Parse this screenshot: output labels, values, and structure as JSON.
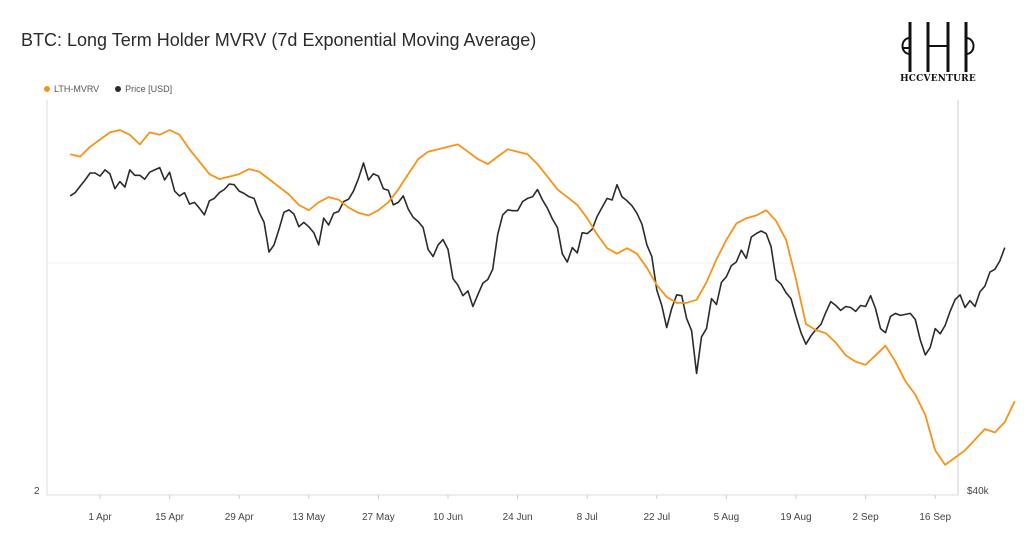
{
  "title": "BTC: Long Term Holder MVRV (7d Exponential Moving Average)",
  "logo": {
    "text": "HCCVENTURE",
    "icon": "hcc-monogram-icon"
  },
  "chart_data": {
    "type": "line",
    "title": "BTC: Long Term Holder MVRV (7d Exponential Moving Average)",
    "legend_position": "top-left",
    "grid": false,
    "x_ticks": [
      "1 Apr",
      "15 Apr",
      "29 Apr",
      "13 May",
      "27 May",
      "10 Jun",
      "24 Jun",
      "8 Jul",
      "22 Jul",
      "5 Aug",
      "19 Aug",
      "2 Sep",
      "16 Sep"
    ],
    "left_axis_label": "2",
    "right_axis_label": "$40k",
    "x_start_day": -6,
    "x_end_day": 173,
    "series": [
      {
        "name": "LTH-MVRV",
        "color": "#f7931a",
        "axis": "left",
        "points": [
          [
            -6,
            3.12
          ],
          [
            -4,
            3.11
          ],
          [
            -2,
            3.15
          ],
          [
            0,
            3.18
          ],
          [
            2,
            3.21
          ],
          [
            4,
            3.22
          ],
          [
            6,
            3.2
          ],
          [
            8,
            3.16
          ],
          [
            10,
            3.21
          ],
          [
            12,
            3.2
          ],
          [
            14,
            3.22
          ],
          [
            16,
            3.2
          ],
          [
            18,
            3.14
          ],
          [
            20,
            3.09
          ],
          [
            22,
            3.04
          ],
          [
            24,
            3.02
          ],
          [
            26,
            3.03
          ],
          [
            28,
            3.04
          ],
          [
            30,
            3.06
          ],
          [
            32,
            3.05
          ],
          [
            34,
            3.02
          ],
          [
            36,
            2.99
          ],
          [
            38,
            2.96
          ],
          [
            40,
            2.92
          ],
          [
            42,
            2.9
          ],
          [
            44,
            2.93
          ],
          [
            46,
            2.95
          ],
          [
            48,
            2.94
          ],
          [
            50,
            2.91
          ],
          [
            52,
            2.89
          ],
          [
            54,
            2.88
          ],
          [
            56,
            2.9
          ],
          [
            58,
            2.93
          ],
          [
            60,
            2.98
          ],
          [
            62,
            3.04
          ],
          [
            64,
            3.1
          ],
          [
            66,
            3.13
          ],
          [
            68,
            3.14
          ],
          [
            70,
            3.15
          ],
          [
            72,
            3.16
          ],
          [
            74,
            3.13
          ],
          [
            76,
            3.1
          ],
          [
            78,
            3.08
          ],
          [
            80,
            3.11
          ],
          [
            82,
            3.14
          ],
          [
            84,
            3.13
          ],
          [
            86,
            3.12
          ],
          [
            88,
            3.08
          ],
          [
            90,
            3.03
          ],
          [
            92,
            2.98
          ],
          [
            94,
            2.95
          ],
          [
            96,
            2.92
          ],
          [
            98,
            2.87
          ],
          [
            100,
            2.81
          ],
          [
            102,
            2.76
          ],
          [
            104,
            2.74
          ],
          [
            106,
            2.76
          ],
          [
            108,
            2.74
          ],
          [
            110,
            2.69
          ],
          [
            112,
            2.63
          ],
          [
            114,
            2.59
          ],
          [
            116,
            2.57
          ],
          [
            118,
            2.57
          ],
          [
            120,
            2.58
          ],
          [
            122,
            2.64
          ],
          [
            124,
            2.72
          ],
          [
            126,
            2.79
          ],
          [
            128,
            2.85
          ],
          [
            130,
            2.87
          ],
          [
            132,
            2.88
          ],
          [
            134,
            2.9
          ],
          [
            136,
            2.86
          ],
          [
            138,
            2.79
          ],
          [
            140,
            2.65
          ],
          [
            142,
            2.5
          ],
          [
            144,
            2.48
          ],
          [
            146,
            2.47
          ],
          [
            148,
            2.44
          ],
          [
            150,
            2.4
          ],
          [
            152,
            2.38
          ],
          [
            154,
            2.37
          ],
          [
            156,
            2.4
          ],
          [
            158,
            2.43
          ],
          [
            160,
            2.38
          ],
          [
            162,
            2.32
          ],
          [
            164,
            2.28
          ],
          [
            166,
            2.22
          ],
          [
            168,
            2.12
          ],
          [
            170,
            2.08
          ],
          [
            172,
            2.1
          ],
          [
            174,
            2.12
          ],
          [
            176,
            2.15
          ],
          [
            178,
            2.18
          ],
          [
            180,
            2.17
          ],
          [
            182,
            2.2
          ],
          [
            184,
            2.26
          ]
        ]
      },
      {
        "name": "Price [USD]",
        "color": "#2b2b2b",
        "axis": "right",
        "points": [
          [
            -6,
            68.6
          ],
          [
            -5,
            69.0
          ],
          [
            -4,
            69.8
          ],
          [
            -3,
            70.6
          ],
          [
            -2,
            71.5
          ],
          [
            -1,
            71.5
          ],
          [
            0,
            71.1
          ],
          [
            1,
            71.9
          ],
          [
            2,
            71.4
          ],
          [
            3,
            69.5
          ],
          [
            4,
            70.4
          ],
          [
            5,
            69.7
          ],
          [
            6,
            71.9
          ],
          [
            7,
            71.2
          ],
          [
            8,
            71.2
          ],
          [
            9,
            70.7
          ],
          [
            10,
            71.6
          ],
          [
            11,
            71.9
          ],
          [
            12,
            72.2
          ],
          [
            13,
            70.6
          ],
          [
            14,
            71.6
          ],
          [
            15,
            69.2
          ],
          [
            16,
            68.6
          ],
          [
            17,
            69.0
          ],
          [
            18,
            67.6
          ],
          [
            19,
            67.8
          ],
          [
            20,
            67.1
          ],
          [
            21,
            66.3
          ],
          [
            22,
            68.0
          ],
          [
            23,
            68.3
          ],
          [
            24,
            69.0
          ],
          [
            25,
            69.4
          ],
          [
            26,
            70.1
          ],
          [
            27,
            70.0
          ],
          [
            28,
            69.2
          ],
          [
            29,
            68.9
          ],
          [
            30,
            68.5
          ],
          [
            31,
            68.3
          ],
          [
            32,
            66.6
          ],
          [
            33,
            65.4
          ],
          [
            34,
            62.0
          ],
          [
            35,
            62.8
          ],
          [
            36,
            64.6
          ],
          [
            37,
            66.6
          ],
          [
            38,
            66.9
          ],
          [
            39,
            66.4
          ],
          [
            40,
            64.9
          ],
          [
            41,
            65.4
          ],
          [
            42,
            64.9
          ],
          [
            43,
            64.2
          ],
          [
            44,
            62.8
          ],
          [
            45,
            65.9
          ],
          [
            46,
            65.1
          ],
          [
            47,
            66.5
          ],
          [
            48,
            66.7
          ],
          [
            49,
            67.9
          ],
          [
            50,
            68.2
          ],
          [
            51,
            69.2
          ],
          [
            52,
            70.8
          ],
          [
            53,
            72.8
          ],
          [
            54,
            70.6
          ],
          [
            55,
            71.4
          ],
          [
            56,
            71.1
          ],
          [
            57,
            69.5
          ],
          [
            58,
            69.3
          ],
          [
            59,
            67.5
          ],
          [
            60,
            67.8
          ],
          [
            61,
            68.6
          ],
          [
            62,
            67.0
          ],
          [
            63,
            66.0
          ],
          [
            64,
            65.5
          ],
          [
            65,
            64.8
          ],
          [
            66,
            62.3
          ],
          [
            67,
            61.5
          ],
          [
            68,
            62.8
          ],
          [
            69,
            63.4
          ],
          [
            70,
            62.3
          ],
          [
            71,
            59.1
          ],
          [
            72,
            58.4
          ],
          [
            73,
            57.3
          ],
          [
            74,
            57.8
          ],
          [
            75,
            56.2
          ],
          [
            76,
            57.4
          ],
          [
            77,
            58.6
          ],
          [
            78,
            59.0
          ],
          [
            79,
            60.1
          ],
          [
            80,
            64.0
          ],
          [
            81,
            66.3
          ],
          [
            82,
            66.9
          ],
          [
            83,
            66.8
          ],
          [
            84,
            66.8
          ],
          [
            85,
            67.9
          ],
          [
            86,
            68.3
          ],
          [
            87,
            68.5
          ],
          [
            88,
            69.4
          ],
          [
            89,
            68.1
          ],
          [
            90,
            67.1
          ],
          [
            91,
            65.8
          ],
          [
            92,
            64.8
          ],
          [
            93,
            61.8
          ],
          [
            94,
            60.9
          ],
          [
            95,
            62.5
          ],
          [
            96,
            61.9
          ],
          [
            97,
            64.2
          ],
          [
            98,
            64.1
          ],
          [
            99,
            64.6
          ],
          [
            100,
            66.1
          ],
          [
            101,
            67.2
          ],
          [
            102,
            68.3
          ],
          [
            103,
            68.1
          ],
          [
            104,
            70.0
          ],
          [
            105,
            68.5
          ],
          [
            106,
            68.0
          ],
          [
            107,
            67.4
          ],
          [
            108,
            66.5
          ],
          [
            109,
            65.2
          ],
          [
            110,
            62.8
          ],
          [
            111,
            61.5
          ],
          [
            112,
            57.9
          ],
          [
            113,
            56.3
          ],
          [
            114,
            54.1
          ],
          [
            115,
            56.0
          ],
          [
            116,
            57.4
          ],
          [
            117,
            57.3
          ],
          [
            118,
            55.0
          ],
          [
            119,
            53.8
          ],
          [
            120,
            49.8
          ],
          [
            121,
            53.2
          ],
          [
            122,
            54.0
          ],
          [
            123,
            57.0
          ],
          [
            124,
            56.4
          ],
          [
            125,
            58.7
          ],
          [
            126,
            59.3
          ],
          [
            127,
            60.5
          ],
          [
            128,
            60.9
          ],
          [
            129,
            62.2
          ],
          [
            130,
            61.3
          ],
          [
            131,
            63.7
          ],
          [
            132,
            64.1
          ],
          [
            133,
            64.4
          ],
          [
            134,
            64.1
          ],
          [
            135,
            62.6
          ],
          [
            136,
            59.0
          ],
          [
            137,
            58.5
          ],
          [
            138,
            57.6
          ],
          [
            139,
            57.0
          ],
          [
            140,
            55.2
          ],
          [
            141,
            53.6
          ],
          [
            142,
            52.5
          ],
          [
            143,
            53.3
          ],
          [
            144,
            53.9
          ],
          [
            145,
            54.4
          ],
          [
            146,
            55.6
          ],
          [
            147,
            56.7
          ],
          [
            148,
            56.3
          ],
          [
            149,
            55.8
          ],
          [
            150,
            56.2
          ],
          [
            151,
            56.1
          ],
          [
            152,
            55.7
          ],
          [
            153,
            56.3
          ],
          [
            154,
            56.2
          ],
          [
            155,
            57.3
          ],
          [
            156,
            56.0
          ],
          [
            157,
            54.0
          ],
          [
            158,
            53.6
          ],
          [
            159,
            55.2
          ],
          [
            160,
            55.5
          ],
          [
            161,
            55.3
          ],
          [
            162,
            55.4
          ],
          [
            163,
            55.5
          ],
          [
            164,
            54.9
          ],
          [
            165,
            52.9
          ],
          [
            166,
            51.5
          ],
          [
            167,
            52.2
          ],
          [
            168,
            54.0
          ],
          [
            169,
            53.5
          ],
          [
            170,
            54.3
          ],
          [
            171,
            55.7
          ],
          [
            172,
            56.9
          ],
          [
            173,
            57.4
          ],
          [
            174,
            56.1
          ],
          [
            175,
            56.8
          ],
          [
            176,
            56.2
          ],
          [
            177,
            57.7
          ],
          [
            178,
            58.3
          ],
          [
            179,
            59.8
          ],
          [
            180,
            60.1
          ],
          [
            181,
            61.0
          ],
          [
            182,
            62.5
          ]
        ]
      }
    ]
  }
}
